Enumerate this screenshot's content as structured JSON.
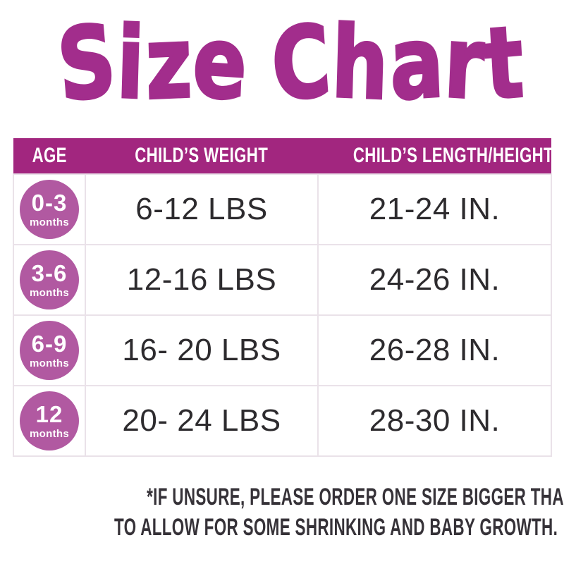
{
  "title": "Size Chart",
  "colors": {
    "title_magenta": "#A22D8C",
    "header_bg": "#A2267F",
    "badge_bg": "#B159A1",
    "cell_text": "#2D2B2E",
    "footnote_text": "#363238",
    "cell_border": "#EAE2E9"
  },
  "table": {
    "columns": [
      "AGE",
      "CHILD’S WEIGHT",
      "CHILD’S LENGTH/HEIGHT"
    ],
    "rows": [
      {
        "age_range": "0-3",
        "age_unit": "months",
        "weight": "6-12 LBS",
        "length": "21-24 IN."
      },
      {
        "age_range": "3-6",
        "age_unit": "months",
        "weight": "12-16 LBS",
        "length": "24-26 IN."
      },
      {
        "age_range": "6-9",
        "age_unit": "months",
        "weight": "16- 20 LBS",
        "length": "26-28 IN."
      },
      {
        "age_range": "12",
        "age_unit": "months",
        "weight": "20- 24 LBS",
        "length": "28-30 IN."
      }
    ]
  },
  "footnote": {
    "line1": "*IF UNSURE, PLEASE ORDER ONE SIZE BIGGER THAN WHAT YOU NEED",
    "line2": "TO ALLOW FOR SOME SHRINKING AND BABY GROWTH."
  },
  "chart_data": {
    "type": "table",
    "title": "Size Chart",
    "columns": [
      "AGE",
      "CHILD’S WEIGHT",
      "CHILD’S LENGTH/HEIGHT"
    ],
    "rows": [
      [
        "0-3 months",
        "6-12 LBS",
        "21-24 IN."
      ],
      [
        "3-6 months",
        "12-16 LBS",
        "24-26 IN."
      ],
      [
        "6-9 months",
        "16- 20 LBS",
        "26-28 IN."
      ],
      [
        "12 months",
        "20- 24 LBS",
        "28-30 IN."
      ]
    ],
    "footnote": "*IF UNSURE, PLEASE ORDER ONE SIZE BIGGER THAN WHAT YOU NEED TO ALLOW FOR SOME SHRINKING AND BABY GROWTH."
  }
}
